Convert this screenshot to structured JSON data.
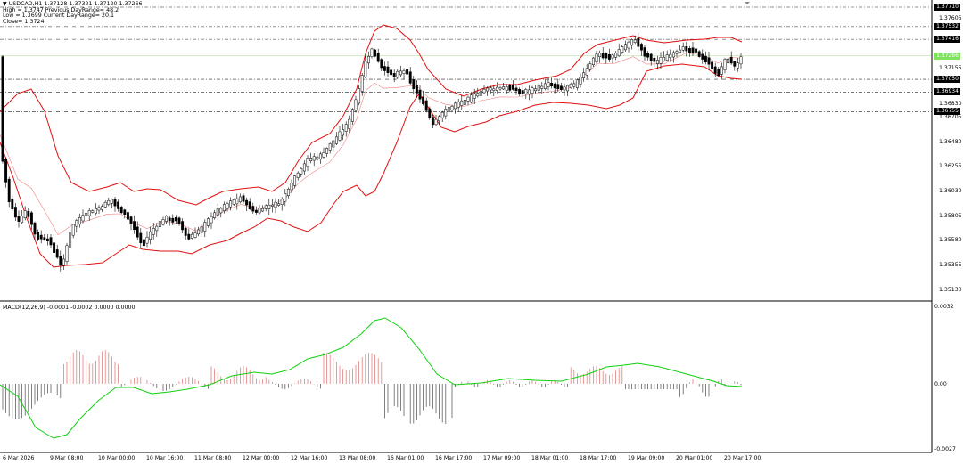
{
  "header": {
    "symbol_line": "USDCAD,H1  1.37128  1.37321  1.37120  1.37266",
    "high_line": "High = 1.3747  Previous DayRange= 48.2",
    "low_line": "Low = 1.3699  Current DayRange= 20.1",
    "close_line": "Close= 1.3724",
    "collapse_icon": "triangle-down-icon"
  },
  "price_axis": {
    "ticks": [
      "1.37710",
      "1.37605",
      "1.37532",
      "1.37416",
      "1.37266",
      "1.37155",
      "1.37050",
      "1.36934",
      "1.36830",
      "1.36755",
      "1.36705",
      "1.36480",
      "1.36255",
      "1.36030",
      "1.35805",
      "1.35580",
      "1.35355",
      "1.35130"
    ],
    "boxed_levels": [
      "1.37710",
      "1.37532",
      "1.37416",
      "1.37050",
      "1.36934",
      "1.36755"
    ],
    "current_price": "1.37266",
    "current_price_secondary": "1.37266"
  },
  "macd": {
    "label": "MACD(12,26,9) -0.0001 -0.0002 0.0000 0.0000",
    "axis_ticks": [
      "0.0032",
      "0.00",
      "-0.0027"
    ]
  },
  "time_axis": {
    "labels": [
      "6 Mar 2026",
      "9 Mar 08:00",
      "10 Mar 00:00",
      "10 Mar 16:00",
      "11 Mar 08:00",
      "12 Mar 00:00",
      "12 Mar 16:00",
      "13 Mar 08:00",
      "16 Mar 01:00",
      "16 Mar 17:00",
      "17 Mar 09:00",
      "18 Mar 01:00",
      "18 Mar 17:00",
      "19 Mar 09:00",
      "20 Mar 01:00",
      "20 Mar 17:00"
    ]
  },
  "colors": {
    "bollinger": "#e01010",
    "midband": "#f08080",
    "macd_signal": "#10d010",
    "hist_pos": "#e08080",
    "hist_neg": "#606060",
    "current_price_box": "#7ee25a"
  }
}
